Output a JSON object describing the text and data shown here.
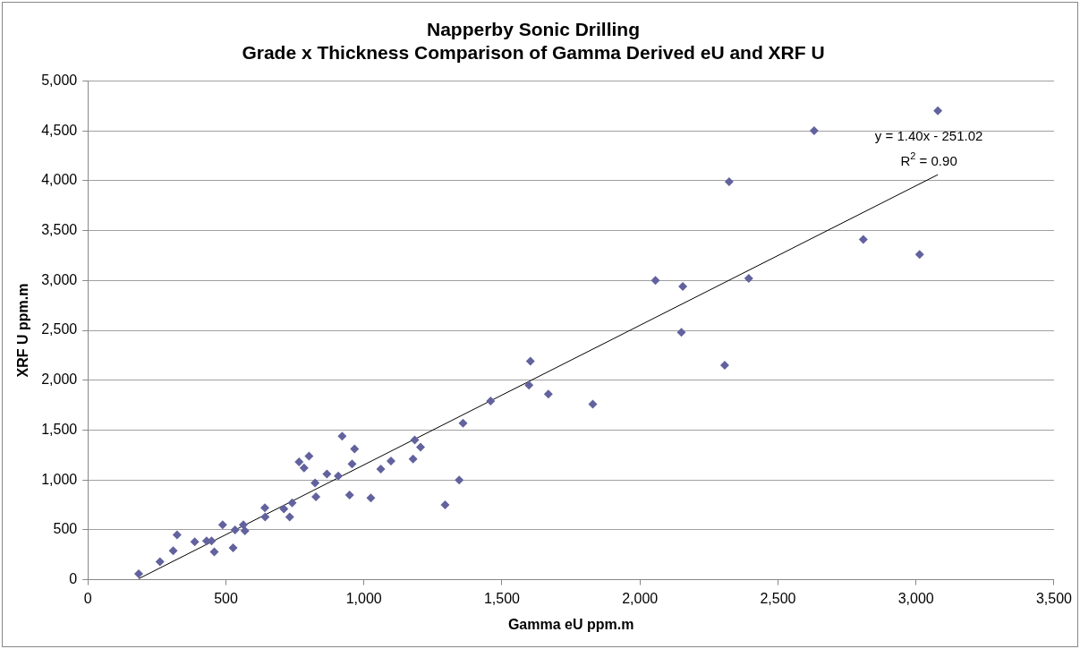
{
  "chart_data": {
    "type": "scatter",
    "title": [
      "Napperby Sonic Drilling",
      "Grade x Thickness Comparison of Gamma Derived eU and XRF U"
    ],
    "xlabel": "Gamma eU ppm.m",
    "ylabel": "XRF U ppm.m",
    "xlim": [
      0,
      3500
    ],
    "xticks": [
      0,
      {
        "value": 500,
        "label": "500"
      },
      {
        "value": 1000,
        "label": "1,000"
      },
      {
        "value": 1500,
        "label": "1,500"
      },
      {
        "value": 2000,
        "label": "2,000"
      },
      {
        "value": 2500,
        "label": "2,500"
      },
      {
        "value": 3000,
        "label": "3,000"
      },
      {
        "value": 3500,
        "label": "3,500"
      }
    ],
    "ylim": [
      0,
      5000
    ],
    "yticks": [
      0,
      500,
      {
        "value": 1000,
        "label": "1,000"
      },
      {
        "value": 1500,
        "label": "1,500"
      },
      {
        "value": 2000,
        "label": "2,000"
      },
      {
        "value": 2500,
        "label": "2,500"
      },
      {
        "value": 3000,
        "label": "3,000"
      },
      {
        "value": 3500,
        "label": "3,500"
      },
      {
        "value": 4000,
        "label": "4,000"
      },
      {
        "value": 4500,
        "label": "4,500"
      },
      {
        "value": 5000,
        "label": "5,000"
      }
    ],
    "grid": "y",
    "legend": false,
    "series": [
      {
        "type": "scatter",
        "color": "#62629e",
        "marker": "diamond",
        "x": [
          184,
          261,
          309,
          323,
          387,
          430,
          448,
          458,
          488,
          526,
          533,
          563,
          569,
          641,
          642,
          710,
          731,
          740,
          765,
          783,
          801,
          823,
          826,
          866,
          907,
          921,
          948,
          957,
          966,
          1025,
          1061,
          1098,
          1178,
          1184,
          1199,
          1205,
          1294,
          1345,
          1359,
          1459,
          1598,
          1603,
          1668,
          1829,
          2056,
          2150,
          2155,
          2307,
          2323,
          2394,
          2631,
          2809,
          3013,
          3079
        ],
        "values": [
          60,
          180,
          290,
          450,
          380,
          390,
          390,
          280,
          550,
          320,
          500,
          550,
          490,
          720,
          630,
          710,
          630,
          770,
          1180,
          1120,
          1240,
          970,
          830,
          1060,
          1040,
          1440,
          850,
          1160,
          1310,
          820,
          1110,
          1190,
          1210,
          1400,
          null,
          1330,
          750,
          1000,
          1570,
          1790,
          1950,
          2190,
          1860,
          1760,
          3000,
          2480,
          2940,
          2150,
          3990,
          3020,
          4500,
          3410,
          3260,
          4700
        ]
      },
      {
        "type": "line",
        "color": "#000000",
        "marker": "none",
        "line_style": "solid",
        "x": [
          184,
          3079
        ],
        "values": [
          10,
          4060
        ]
      }
    ],
    "annotations": [
      "y = 1.40x - 251.02",
      "R$^{2}$ = 0.90"
    ]
  }
}
